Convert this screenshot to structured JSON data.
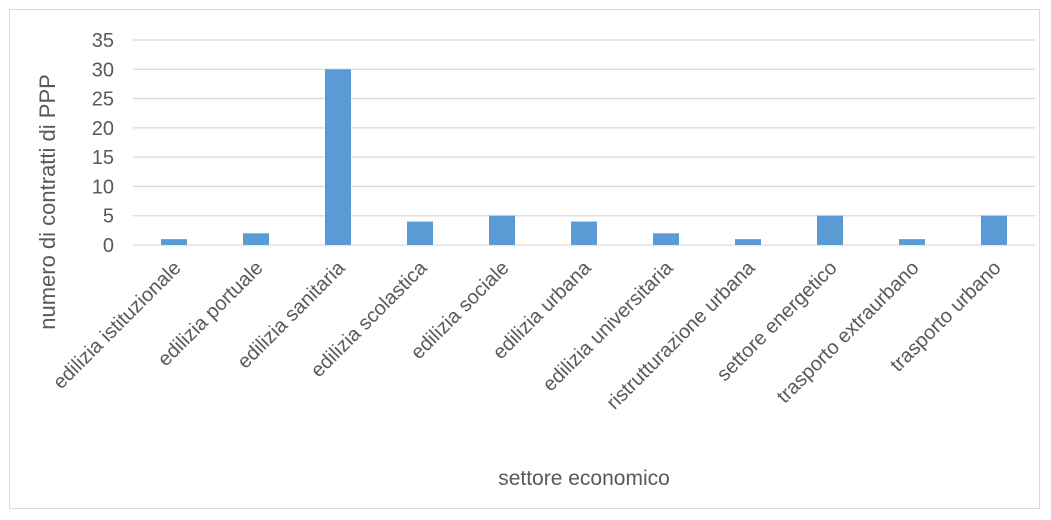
{
  "chart_data": {
    "type": "bar",
    "title": "",
    "xlabel": "settore economico",
    "ylabel": "numero di contratti di PPP",
    "categories": [
      "edilizia istituzionale",
      "edilizia portuale",
      "edilizia sanitaria",
      "edilizia scolastica",
      "edilizia sociale",
      "edilizia urbana",
      "edilizia universitaria",
      "ristrutturazione urbana",
      "settore energetico",
      "trasporto  extraurbano",
      "trasporto urbano"
    ],
    "values": [
      1,
      2,
      30,
      4,
      5,
      4,
      2,
      1,
      5,
      1,
      5
    ],
    "ylim": [
      0,
      35
    ],
    "yticks": [
      0,
      5,
      10,
      15,
      20,
      25,
      30,
      35
    ],
    "grid": true,
    "legend": "none",
    "colors": {
      "bar": "#5b9bd5",
      "grid": "#d9d9d9",
      "text": "#595959"
    }
  }
}
